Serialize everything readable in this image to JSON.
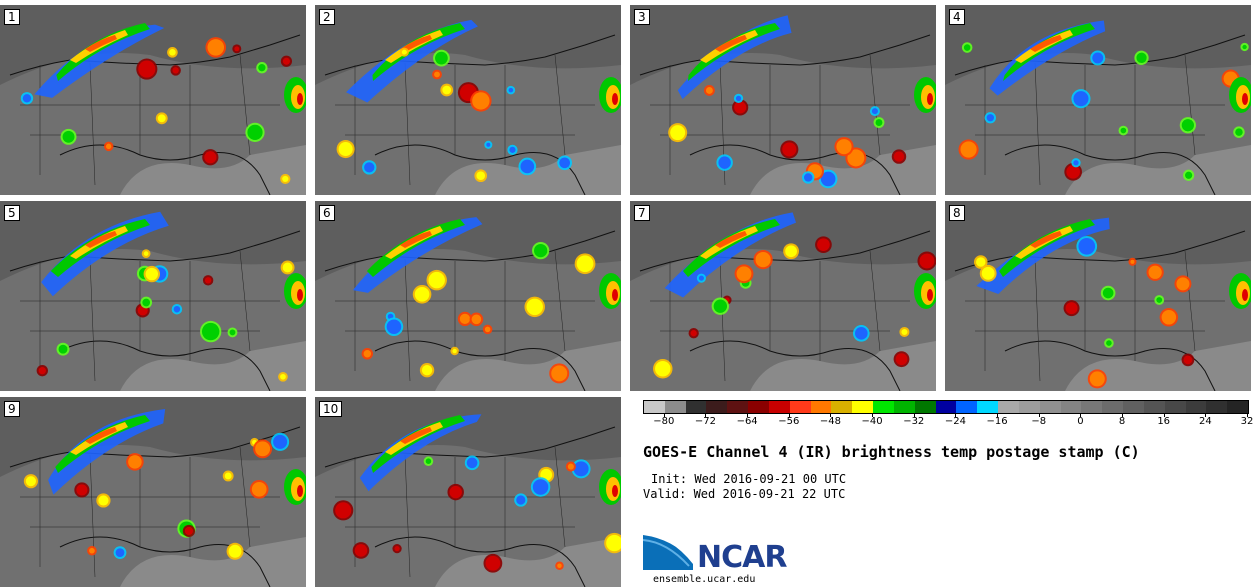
{
  "panels": [
    {
      "label": "1"
    },
    {
      "label": "2"
    },
    {
      "label": "3"
    },
    {
      "label": "4"
    },
    {
      "label": "5"
    },
    {
      "label": "6"
    },
    {
      "label": "7"
    },
    {
      "label": "8"
    },
    {
      "label": "9"
    },
    {
      "label": "10"
    }
  ],
  "colorbar": {
    "colors": [
      "#c8c8c8",
      "#8c8c8c",
      "#303030",
      "#3c1c1c",
      "#5e1212",
      "#8a0000",
      "#c80000",
      "#ff3a1a",
      "#ff7800",
      "#d8b000",
      "#ffff00",
      "#00e600",
      "#00b400",
      "#007800",
      "#0000a0",
      "#0064ff",
      "#00d8ff",
      "#a8a8a8",
      "#9c9c9c",
      "#909090",
      "#848484",
      "#787878",
      "#6c6c6c",
      "#606060",
      "#545454",
      "#484848",
      "#3c3c3c",
      "#303030",
      "#242424"
    ],
    "ticks": [
      "−80",
      "−72",
      "−64",
      "−56",
      "−48",
      "−40",
      "−32",
      "−24",
      "−16",
      "−8",
      "0",
      "8",
      "16",
      "24",
      "32"
    ]
  },
  "title": "GOES-E Channel 4 (IR) brightness temp postage stamp (C)",
  "init": "Init: Wed 2016-09-21 00 UTC",
  "valid": "Valid: Wed 2016-09-21 22 UTC",
  "logo": {
    "text": "NCAR",
    "site": "ensemble.ucar.edu"
  }
}
